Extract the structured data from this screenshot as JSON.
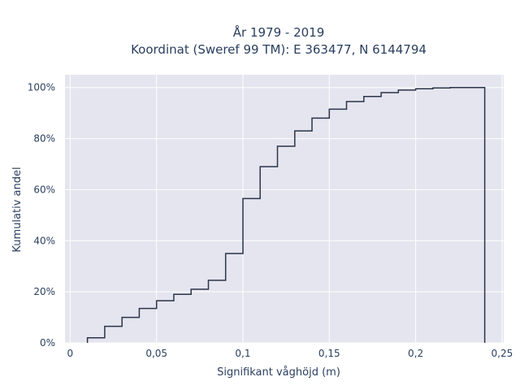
{
  "chart_data": {
    "type": "line",
    "line_shape": "step",
    "title_lines": [
      "År 1979 - 2019",
      "Koordinat (Sweref 99 TM): E 363477, N 6144794"
    ],
    "xlabel": "Signifikant våghöjd (m)",
    "ylabel": "Kumulativ andel",
    "xlim": [
      -0.003,
      0.251
    ],
    "ylim": [
      0,
      1.05
    ],
    "x_ticks": [
      0,
      0.05,
      0.1,
      0.15,
      0.2,
      0.25
    ],
    "x_tick_labels": [
      "0",
      "0,05",
      "0,1",
      "0,15",
      "0,2",
      "0,25"
    ],
    "y_ticks": [
      0,
      0.2,
      0.4,
      0.6,
      0.8,
      1.0
    ],
    "y_tick_labels": [
      "0%",
      "20%",
      "40%",
      "60%",
      "80%",
      "100%"
    ],
    "grid": true,
    "plot_background": "#e5e5ef",
    "grid_color": "#ffffff",
    "line_color": "#2a3548",
    "series": [
      {
        "x": [
          0.01,
          0.02,
          0.03,
          0.04,
          0.05,
          0.06,
          0.07,
          0.08,
          0.09,
          0.1,
          0.11,
          0.12,
          0.13,
          0.14,
          0.15,
          0.16,
          0.17,
          0.18,
          0.19,
          0.2,
          0.21,
          0.22,
          0.23,
          0.24
        ],
        "y": [
          0.02,
          0.065,
          0.1,
          0.135,
          0.165,
          0.19,
          0.21,
          0.245,
          0.35,
          0.565,
          0.69,
          0.77,
          0.83,
          0.88,
          0.915,
          0.945,
          0.965,
          0.98,
          0.99,
          0.995,
          0.998,
          1.0,
          1.0,
          0
        ]
      }
    ]
  }
}
